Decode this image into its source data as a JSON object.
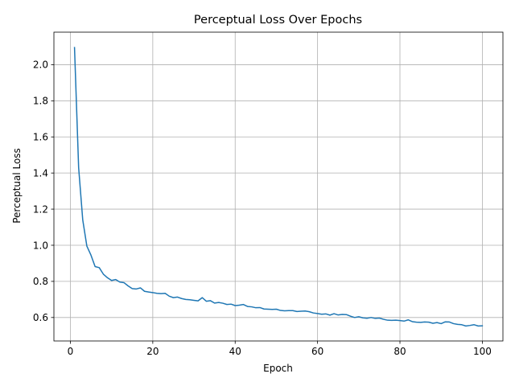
{
  "chart_data": {
    "type": "line",
    "title": "Perceptual Loss Over Epochs",
    "xlabel": "Epoch",
    "ylabel": "Perceptual Loss",
    "xlim": [
      -4,
      105
    ],
    "ylim": [
      0.47,
      2.18
    ],
    "xticks": [
      0,
      20,
      40,
      60,
      80,
      100
    ],
    "yticks": [
      0.6,
      0.8,
      1.0,
      1.2,
      1.4,
      1.6,
      1.8,
      2.0
    ],
    "grid": true,
    "color": "#1f77b4",
    "series": [
      {
        "x": [
          1,
          2,
          3,
          4,
          5,
          6,
          7,
          8,
          9,
          10,
          11,
          12,
          13,
          14,
          15,
          16,
          17,
          18,
          19,
          20,
          21,
          22,
          23,
          24,
          25,
          26,
          27,
          28,
          29,
          30,
          31,
          32,
          33,
          34,
          35,
          36,
          37,
          38,
          39,
          40,
          41,
          42,
          43,
          44,
          45,
          46,
          47,
          48,
          49,
          50,
          51,
          52,
          53,
          54,
          55,
          56,
          57,
          58,
          59,
          60,
          61,
          62,
          63,
          64,
          65,
          66,
          67,
          68,
          69,
          70,
          71,
          72,
          73,
          74,
          75,
          76,
          77,
          78,
          79,
          80,
          81,
          82,
          83,
          84,
          85,
          86,
          87,
          88,
          89,
          90,
          91,
          92,
          93,
          94,
          95,
          96,
          97,
          98,
          99,
          100
        ],
        "values": [
          2.095,
          1.43,
          1.14,
          0.995,
          0.945,
          0.882,
          0.876,
          0.84,
          0.82,
          0.805,
          0.81,
          0.796,
          0.793,
          0.775,
          0.76,
          0.758,
          0.764,
          0.745,
          0.741,
          0.738,
          0.734,
          0.732,
          0.734,
          0.718,
          0.71,
          0.713,
          0.705,
          0.7,
          0.698,
          0.695,
          0.692,
          0.71,
          0.69,
          0.693,
          0.68,
          0.683,
          0.679,
          0.672,
          0.674,
          0.666,
          0.668,
          0.672,
          0.661,
          0.659,
          0.654,
          0.655,
          0.647,
          0.646,
          0.645,
          0.646,
          0.639,
          0.637,
          0.638,
          0.638,
          0.633,
          0.635,
          0.636,
          0.632,
          0.625,
          0.622,
          0.618,
          0.62,
          0.613,
          0.621,
          0.614,
          0.617,
          0.616,
          0.607,
          0.6,
          0.604,
          0.598,
          0.596,
          0.6,
          0.595,
          0.597,
          0.59,
          0.585,
          0.584,
          0.585,
          0.583,
          0.58,
          0.587,
          0.577,
          0.574,
          0.573,
          0.575,
          0.574,
          0.568,
          0.572,
          0.566,
          0.576,
          0.575,
          0.566,
          0.562,
          0.56,
          0.553,
          0.556,
          0.56,
          0.553,
          0.554
        ]
      }
    ]
  }
}
